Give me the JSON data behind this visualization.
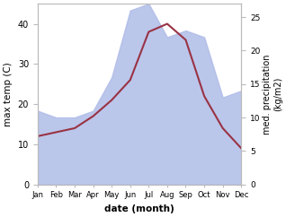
{
  "months": [
    "Jan",
    "Feb",
    "Mar",
    "Apr",
    "May",
    "Jun",
    "Jul",
    "Aug",
    "Sep",
    "Oct",
    "Nov",
    "Dec"
  ],
  "month_indices": [
    1,
    2,
    3,
    4,
    5,
    6,
    7,
    8,
    9,
    10,
    11,
    12
  ],
  "precipitation": [
    11,
    10,
    10,
    11,
    16,
    26,
    27,
    22,
    23,
    22,
    13,
    14
  ],
  "max_temp": [
    12,
    13,
    14,
    17,
    21,
    26,
    38,
    40,
    36,
    22,
    14,
    9
  ],
  "precip_color": "#b0bce8",
  "temp_line_color": "#993344",
  "ylabel_left": "max temp (C)",
  "ylabel_right": "med. precipitation\n(kg/m2)",
  "xlabel": "date (month)",
  "ylim_left": [
    0,
    45
  ],
  "ylim_right": [
    0,
    27
  ],
  "yticks_left": [
    0,
    10,
    20,
    30,
    40
  ],
  "yticks_right": [
    0,
    5,
    10,
    15,
    20,
    25
  ],
  "background_color": "#ffffff",
  "spine_color": "#bbbbbb",
  "figsize": [
    3.18,
    2.42
  ],
  "dpi": 100
}
